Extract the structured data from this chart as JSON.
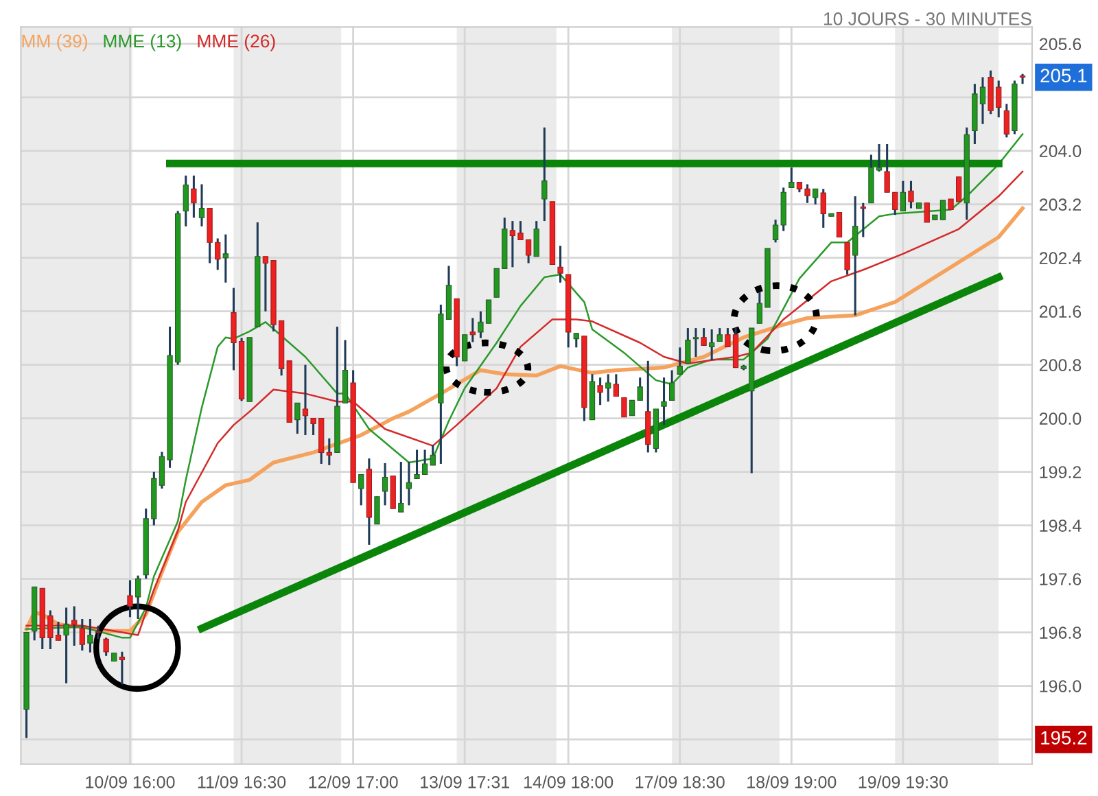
{
  "chart_data": {
    "type": "candlestick",
    "subtitle": "10 JOURS - 30 MINUTES",
    "categories": [
      null,
      null,
      null,
      null,
      null,
      null,
      null,
      null,
      null,
      null,
      null,
      null,
      null,
      "10/09 16:00",
      null,
      null,
      null,
      null,
      null,
      null,
      null,
      null,
      null,
      null,
      null,
      null,
      null,
      "11/09 16:30",
      null,
      null,
      null,
      null,
      null,
      null,
      null,
      null,
      null,
      null,
      null,
      null,
      null,
      "12/09 17:00",
      null,
      null,
      null,
      null,
      null,
      null,
      null,
      null,
      null,
      null,
      null,
      null,
      null,
      "13/09 17:31",
      null,
      null,
      null,
      null,
      null,
      null,
      null,
      null,
      null,
      null,
      null,
      null,
      "14/09 18:00",
      null,
      null,
      null,
      null,
      null,
      null,
      null,
      null,
      null,
      null,
      null,
      null,
      null,
      "17/09 18:30",
      null,
      null,
      null,
      null,
      null,
      null,
      null,
      null,
      null,
      null,
      null,
      null,
      null,
      "18/09 19:00",
      null,
      null,
      null,
      null,
      null,
      null,
      null,
      null,
      null,
      null,
      null,
      null,
      null,
      "19/09 19:30",
      null,
      null,
      null,
      null,
      null,
      null,
      null,
      null,
      null,
      null,
      null,
      null,
      null,
      null,
      null
    ],
    "ohlc": [
      [
        195.65,
        196.8,
        195.22,
        196.8
      ],
      [
        196.82,
        197.48,
        196.68,
        197.48
      ],
      [
        197.46,
        197.46,
        196.55,
        196.72
      ],
      [
        197.05,
        197.13,
        196.55,
        196.72
      ],
      [
        196.76,
        196.96,
        196.68,
        196.68
      ],
      [
        196.76,
        197.17,
        196.04,
        196.92
      ],
      [
        196.98,
        197.19,
        196.6,
        196.92
      ],
      [
        196.86,
        197.0,
        196.53,
        196.62
      ],
      [
        196.64,
        197.0,
        196.5,
        196.76
      ],
      [
        196.8,
        196.9,
        196.7,
        196.8
      ],
      [
        196.7,
        196.72,
        196.45,
        196.51
      ],
      [
        196.37,
        196.49,
        196.37,
        196.49
      ],
      [
        196.43,
        196.51,
        196.02,
        196.39
      ],
      [
        197.35,
        197.58,
        197.03,
        197.19
      ],
      [
        197.33,
        197.65,
        197.0,
        197.6
      ],
      [
        197.66,
        198.65,
        197.6,
        198.5
      ],
      [
        198.5,
        199.2,
        198.4,
        199.1
      ],
      [
        199.0,
        199.5,
        198.95,
        199.43
      ],
      [
        199.38,
        201.37,
        199.26,
        200.94
      ],
      [
        200.84,
        203.1,
        200.8,
        203.06
      ],
      [
        203.1,
        203.63,
        202.87,
        203.49
      ],
      [
        203.43,
        203.63,
        203.0,
        203.22
      ],
      [
        203.0,
        203.5,
        202.87,
        203.14
      ],
      [
        203.14,
        203.14,
        202.32,
        202.63
      ],
      [
        202.63,
        202.69,
        202.22,
        202.38
      ],
      [
        202.4,
        202.75,
        202.03,
        202.46
      ],
      [
        201.58,
        201.95,
        200.72,
        201.13
      ],
      [
        201.15,
        201.2,
        200.26,
        200.29
      ],
      [
        200.25,
        201.21,
        200.25,
        201.21
      ],
      [
        201.37,
        202.93,
        201.37,
        202.42
      ],
      [
        202.42,
        202.42,
        201.6,
        202.32
      ],
      [
        202.36,
        202.36,
        201.3,
        201.4
      ],
      [
        201.46,
        201.46,
        200.64,
        200.74
      ],
      [
        200.86,
        200.86,
        199.94,
        199.94
      ],
      [
        199.98,
        200.23,
        199.77,
        200.23
      ],
      [
        200.14,
        200.8,
        199.75,
        200.04
      ],
      [
        200.0,
        200.0,
        199.75,
        199.92
      ],
      [
        200.0,
        200.0,
        199.32,
        199.49
      ],
      [
        199.49,
        199.7,
        199.3,
        199.45
      ],
      [
        199.49,
        201.37,
        199.49,
        200.18
      ],
      [
        200.23,
        201.17,
        200.23,
        200.72
      ],
      [
        200.53,
        200.72,
        199.04,
        199.04
      ],
      [
        198.95,
        199.16,
        198.7,
        199.16
      ],
      [
        199.24,
        199.4,
        198.11,
        198.52
      ],
      [
        198.42,
        198.83,
        198.42,
        198.83
      ],
      [
        198.91,
        199.33,
        198.7,
        199.12
      ],
      [
        199.14,
        199.14,
        198.65,
        198.65
      ],
      [
        198.6,
        199.35,
        198.6,
        198.73
      ],
      [
        198.95,
        199.35,
        198.7,
        199.04
      ],
      [
        199.1,
        199.53,
        199.1,
        199.16
      ],
      [
        199.16,
        199.53,
        199.16,
        199.32
      ],
      [
        199.3,
        199.6,
        199.3,
        199.45
      ],
      [
        200.23,
        201.7,
        199.32,
        201.56
      ],
      [
        201.48,
        202.28,
        201.48,
        201.99
      ],
      [
        201.79,
        201.79,
        200.78,
        200.92
      ],
      [
        200.86,
        201.25,
        200.86,
        201.25
      ],
      [
        201.29,
        201.5,
        201.14,
        201.25
      ],
      [
        201.29,
        201.6,
        201.2,
        201.44
      ],
      [
        201.42,
        201.77,
        201.42,
        201.77
      ],
      [
        201.81,
        202.24,
        201.81,
        202.24
      ],
      [
        202.24,
        203.0,
        202.24,
        202.83
      ],
      [
        202.81,
        202.95,
        202.26,
        202.73
      ],
      [
        202.77,
        202.95,
        202.67,
        202.67
      ],
      [
        202.67,
        202.67,
        202.32,
        202.44
      ],
      [
        202.42,
        202.95,
        202.42,
        202.83
      ],
      [
        203.28,
        204.35,
        202.95,
        203.55
      ],
      [
        203.24,
        203.24,
        202.3,
        202.3
      ],
      [
        202.26,
        202.58,
        202.03,
        202.17
      ],
      [
        202.15,
        202.15,
        201.06,
        201.29
      ],
      [
        201.19,
        201.27,
        201.06,
        201.27
      ],
      [
        201.23,
        201.23,
        199.96,
        200.16
      ],
      [
        199.98,
        200.66,
        199.98,
        200.55
      ],
      [
        200.49,
        200.61,
        200.2,
        200.39
      ],
      [
        200.45,
        200.66,
        200.25,
        200.53
      ],
      [
        200.51,
        200.66,
        200.33,
        200.33
      ],
      [
        200.31,
        200.31,
        200.02,
        200.02
      ],
      [
        200.04,
        200.27,
        200.04,
        200.27
      ],
      [
        200.27,
        200.61,
        200.27,
        200.47
      ],
      [
        200.1,
        200.86,
        199.49,
        199.61
      ],
      [
        199.55,
        200.14,
        199.49,
        200.14
      ],
      [
        200.18,
        200.61,
        199.9,
        200.25
      ],
      [
        200.27,
        200.72,
        200.27,
        200.53
      ],
      [
        200.66,
        201.06,
        200.66,
        200.78
      ],
      [
        200.82,
        201.35,
        200.82,
        201.17
      ],
      [
        201.19,
        201.35,
        200.92,
        201.21
      ],
      [
        201.21,
        201.35,
        201.09,
        201.09
      ],
      [
        201.07,
        201.33,
        200.87,
        201.13
      ],
      [
        201.15,
        201.35,
        201.15,
        201.25
      ],
      [
        201.25,
        201.35,
        201.07,
        201.07
      ],
      [
        201.25,
        201.35,
        200.76,
        200.76
      ],
      [
        200.74,
        200.8,
        200.72,
        200.78
      ],
      [
        200.41,
        201.35,
        199.18,
        201.35
      ],
      [
        201.42,
        201.89,
        201.42,
        201.72
      ],
      [
        201.66,
        202.54,
        201.66,
        202.54
      ],
      [
        202.67,
        202.97,
        202.63,
        202.89
      ],
      [
        202.89,
        203.45,
        202.8,
        203.38
      ],
      [
        203.45,
        203.75,
        203.45,
        203.53
      ],
      [
        203.53,
        203.53,
        203.38,
        203.43
      ],
      [
        203.43,
        203.5,
        203.22,
        203.33
      ],
      [
        203.3,
        203.43,
        203.2,
        203.43
      ],
      [
        203.37,
        203.43,
        202.85,
        203.06
      ],
      [
        203.02,
        203.06,
        203.02,
        203.06
      ],
      [
        203.08,
        203.08,
        202.71,
        202.71
      ],
      [
        202.63,
        202.63,
        202.15,
        202.22
      ],
      [
        202.44,
        203.32,
        201.54,
        202.87
      ],
      [
        203.16,
        203.22,
        202.71,
        203.14
      ],
      [
        203.22,
        203.94,
        203.22,
        203.75
      ],
      [
        203.71,
        204.1,
        203.69,
        203.75
      ],
      [
        203.69,
        204.1,
        203.38,
        203.38
      ],
      [
        203.38,
        203.38,
        203.04,
        203.12
      ],
      [
        203.1,
        203.55,
        203.1,
        203.38
      ],
      [
        203.4,
        203.55,
        203.14,
        203.24
      ],
      [
        203.14,
        203.22,
        203.14,
        203.22
      ],
      [
        203.22,
        203.22,
        202.93,
        202.93
      ],
      [
        202.97,
        203.04,
        202.97,
        203.04
      ],
      [
        202.97,
        203.26,
        202.97,
        203.26
      ],
      [
        203.28,
        203.28,
        203.12,
        203.12
      ],
      [
        203.61,
        203.61,
        203.24,
        203.24
      ],
      [
        203.22,
        204.35,
        202.97,
        204.24
      ],
      [
        204.3,
        205.0,
        204.1,
        204.85
      ],
      [
        204.7,
        205.1,
        204.4,
        204.95
      ],
      [
        205.1,
        205.2,
        204.55,
        204.6
      ],
      [
        204.95,
        205.05,
        204.5,
        204.65
      ],
      [
        204.6,
        204.7,
        204.2,
        204.25
      ],
      [
        204.3,
        205.05,
        204.25,
        205.0
      ],
      [
        205.12,
        205.15,
        205.0,
        205.1
      ]
    ],
    "series": [
      {
        "type": "line",
        "name": "MM (39)",
        "color": "#f5a25d",
        "values": [
          196.85,
          197.1,
          197.07,
          null,
          196.92,
          null,
          null,
          196.88,
          null,
          null,
          196.82,
          null,
          null,
          196.82,
          null,
          197.07,
          null,
          197.7,
          null,
          198.3,
          null,
          null,
          198.75,
          null,
          null,
          199.0,
          null,
          null,
          199.08,
          null,
          null,
          199.34,
          null,
          null,
          null,
          null,
          199.49,
          null,
          null,
          null,
          null,
          null,
          199.75,
          null,
          null,
          null,
          200.0,
          null,
          200.1,
          null,
          null,
          null,
          200.37,
          null,
          null,
          null,
          null,
          200.72,
          null,
          null,
          200.66,
          null,
          null,
          null,
          200.64,
          null,
          null,
          200.78,
          null,
          null,
          null,
          200.68,
          null,
          null,
          200.72,
          null,
          null,
          null,
          null,
          null,
          200.76,
          null,
          null,
          null,
          null,
          200.92,
          null,
          null,
          null,
          null,
          201.21,
          null,
          null,
          null,
          null,
          201.4,
          null,
          null,
          201.5,
          null,
          null,
          null,
          null,
          null,
          201.54,
          null,
          null,
          null,
          null,
          201.74,
          null,
          null,
          null,
          null,
          null,
          null,
          202.26,
          null,
          null,
          null,
          null,
          null,
          202.71,
          null,
          null,
          203.14
        ]
      },
      {
        "type": "line",
        "name": "MME (13)",
        "color": "#2a9a2a",
        "values": [
          196.85,
          null,
          null,
          null,
          null,
          null,
          null,
          196.88,
          null,
          null,
          null,
          null,
          196.72,
          196.72,
          null,
          197.17,
          197.64,
          null,
          null,
          198.46,
          199.08,
          null,
          200.16,
          null,
          201.07,
          201.21,
          201.19,
          null,
          201.3,
          null,
          201.44,
          null,
          null,
          null,
          null,
          200.92,
          null,
          null,
          null,
          200.37,
          200.37,
          null,
          null,
          199.84,
          null,
          null,
          null,
          null,
          199.34,
          null,
          null,
          199.4,
          null,
          199.96,
          null,
          200.45,
          null,
          null,
          null,
          201.13,
          null,
          null,
          201.68,
          null,
          null,
          202.11,
          null,
          202.15,
          null,
          null,
          201.74,
          201.33,
          null,
          null,
          null,
          200.98,
          null,
          null,
          null,
          200.57,
          null,
          200.51,
          null,
          200.76,
          null,
          null,
          200.88,
          null,
          null,
          null,
          200.88,
          null,
          null,
          201.19,
          null,
          null,
          null,
          202.09,
          null,
          null,
          null,
          202.63,
          null,
          202.63,
          null,
          null,
          null,
          203.02,
          null,
          203.06,
          null,
          null,
          null,
          null,
          null,
          null,
          203.12,
          null,
          203.32,
          null,
          null,
          null,
          203.8,
          null,
          null,
          204.25
        ]
      },
      {
        "type": "line",
        "name": "MME (26)",
        "color": "#d42a2a",
        "values": [
          196.9,
          null,
          null,
          null,
          null,
          null,
          null,
          196.9,
          null,
          null,
          null,
          null,
          196.8,
          null,
          196.76,
          null,
          197.44,
          null,
          null,
          198.32,
          198.75,
          null,
          null,
          null,
          199.63,
          null,
          199.9,
          null,
          200.1,
          null,
          null,
          200.43,
          null,
          null,
          null,
          200.37,
          null,
          null,
          null,
          200.25,
          null,
          200.25,
          null,
          null,
          null,
          199.84,
          null,
          null,
          null,
          null,
          null,
          199.59,
          null,
          null,
          199.9,
          null,
          null,
          null,
          null,
          200.45,
          null,
          null,
          201.07,
          null,
          null,
          null,
          201.48,
          null,
          null,
          201.48,
          null,
          201.45,
          null,
          null,
          null,
          null,
          null,
          201.13,
          null,
          null,
          200.92,
          null,
          null,
          200.82,
          null,
          null,
          null,
          null,
          null,
          200.92,
          null,
          200.98,
          null,
          null,
          null,
          201.48,
          null,
          null,
          null,
          null,
          null,
          202.05,
          null,
          null,
          null,
          202.22,
          null,
          null,
          null,
          null,
          202.46,
          null,
          null,
          null,
          null,
          null,
          null,
          202.83,
          null,
          null,
          null,
          null,
          203.32,
          null,
          null,
          203.69
        ]
      },
      {
        "type": "line",
        "color": "#0a850a",
        "values": [
          null,
          null,
          null,
          null,
          null,
          null,
          null,
          null,
          null,
          null,
          null,
          null,
          null,
          null,
          null,
          null,
          null,
          null,
          203.81,
          null,
          null,
          null,
          null,
          null,
          null,
          null,
          null,
          null,
          null,
          null,
          null,
          null,
          null,
          null,
          null,
          null,
          null,
          null,
          null,
          null,
          null,
          null,
          null,
          null,
          null,
          null,
          null,
          null,
          null,
          null,
          null,
          null,
          null,
          null,
          null,
          null,
          null,
          null,
          null,
          null,
          null,
          null,
          null,
          null,
          null,
          null,
          null,
          null,
          null,
          null,
          null,
          null,
          null,
          null,
          null,
          null,
          null,
          null,
          null,
          null,
          null,
          null,
          null,
          null,
          null,
          null,
          null,
          null,
          null,
          null,
          null,
          null,
          null,
          null,
          null,
          null,
          null,
          null,
          null,
          null,
          null,
          null,
          null,
          null,
          null,
          null,
          null,
          null,
          null,
          null,
          null,
          null,
          null,
          null,
          null,
          null,
          null,
          null,
          null,
          null,
          null,
          null,
          203.81,
          null,
          null,
          null
        ]
      },
      {
        "type": "line",
        "color": "#0a850a",
        "values": [
          null,
          null,
          null,
          null,
          null,
          null,
          null,
          null,
          null,
          null,
          null,
          null,
          null,
          null,
          null,
          null,
          null,
          null,
          null,
          null,
          null,
          null,
          196.86,
          null,
          null,
          null,
          null,
          null,
          null,
          null,
          null,
          null,
          null,
          null,
          null,
          null,
          null,
          null,
          null,
          null,
          null,
          null,
          null,
          null,
          null,
          null,
          null,
          null,
          null,
          null,
          null,
          null,
          null,
          null,
          null,
          null,
          null,
          null,
          null,
          null,
          null,
          null,
          null,
          null,
          null,
          null,
          null,
          null,
          null,
          null,
          null,
          null,
          null,
          null,
          null,
          null,
          null,
          null,
          null,
          null,
          null,
          null,
          null,
          null,
          null,
          null,
          null,
          null,
          null,
          null,
          null,
          null,
          null,
          null,
          null,
          null,
          null,
          null,
          null,
          null,
          null,
          null,
          null,
          null,
          null,
          null,
          null,
          null,
          null,
          null,
          null,
          null,
          null,
          null,
          null,
          null,
          null,
          null,
          null,
          null,
          null,
          null,
          202.11,
          null,
          null,
          null
        ]
      }
    ],
    "ylim": [
      194.83,
      205.85
    ],
    "yticks": [
      {
        "value": 195.2,
        "label": null
      },
      {
        "value": 196.0,
        "label": "196.0"
      },
      196.8,
      197.6,
      198.4,
      199.2,
      {
        "value": 200.0,
        "label": "200.0"
      },
      200.8,
      201.6,
      202.4,
      203.2,
      {
        "value": 204.0,
        "label": "204.0"
      },
      {
        "value": 204.8,
        "label": null
      },
      205.6
    ],
    "annotations": [
      {
        "text": "205.1",
        "y": 205.1
      },
      {
        "text": "195.2",
        "y": 195.2
      }
    ],
    "grid": true,
    "legend": "top left"
  }
}
